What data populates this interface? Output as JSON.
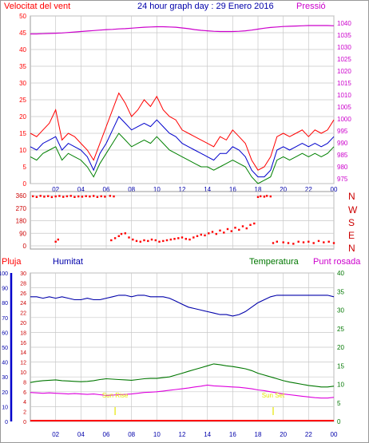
{
  "header": {
    "title": "24 hour graph day : 29 Enero 2016",
    "wind_label": "Velocitat del vent",
    "pressure_label": "Pressió"
  },
  "panel3_labels": {
    "rain": "Pluja",
    "humidity": "Humitat",
    "temperature": "Temperatura",
    "dewpoint": "Punt rosada",
    "sunrise": "Sun Rise",
    "sunset": "Sun Set"
  },
  "direction_labels": [
    "N",
    "W",
    "S",
    "E",
    "N"
  ],
  "colors": {
    "wind_gust": "#ff0000",
    "wind_avg": "#0000cc",
    "wind_speed": "#008000",
    "pressure": "#cc00cc",
    "direction": "#ff0000",
    "humidity": "#0000aa",
    "temperature": "#007700",
    "dewpoint": "#dd00dd",
    "rain": "#ff0000",
    "sun": "#e6e600",
    "grid": "#c8c8c8",
    "title": "#0000aa"
  },
  "chart_data": [
    {
      "type": "line",
      "name": "wind-pressure",
      "x_hours": [
        0,
        0.5,
        1,
        1.5,
        2,
        2.5,
        3,
        3.5,
        4,
        4.5,
        5,
        5.5,
        6,
        6.5,
        7,
        7.5,
        8,
        8.5,
        9,
        9.5,
        10,
        10.5,
        11,
        11.5,
        12,
        12.5,
        13,
        13.5,
        14,
        14.5,
        15,
        15.5,
        16,
        16.5,
        17,
        17.5,
        18,
        18.5,
        19,
        19.5,
        20,
        20.5,
        21,
        21.5,
        22,
        22.5,
        23,
        23.5,
        24
      ],
      "x_tick_labels": [
        "02",
        "04",
        "06",
        "08",
        "10",
        "12",
        "14",
        "16",
        "18",
        "20",
        "22",
        "00"
      ],
      "y_left_ticks": [
        0,
        5,
        10,
        15,
        20,
        25,
        30,
        35,
        40,
        45,
        50
      ],
      "y_right_ticks": [
        975,
        980,
        985,
        990,
        995,
        1000,
        1005,
        1010,
        1015,
        1020,
        1025,
        1030,
        1035,
        1040
      ],
      "ylim_left": [
        0,
        50
      ],
      "ylim_right": [
        973,
        1043
      ],
      "series": [
        {
          "values": [
            15,
            14,
            16,
            18,
            22,
            13,
            15,
            14,
            12,
            10,
            7,
            12,
            17,
            22,
            27,
            24,
            20,
            22,
            25,
            23,
            26,
            22,
            20,
            19,
            16,
            15,
            14,
            13,
            12,
            11,
            14,
            13,
            16,
            14,
            12,
            7,
            4,
            5,
            8,
            14,
            15,
            14,
            15,
            16,
            14,
            16,
            15,
            16,
            19
          ],
          "axis": "left"
        },
        {
          "values": [
            11,
            10,
            12,
            13,
            14,
            10,
            12,
            11,
            10,
            8,
            4,
            9,
            12,
            16,
            20,
            18,
            16,
            17,
            18,
            17,
            19,
            17,
            15,
            14,
            12,
            11,
            10,
            9,
            8,
            7,
            9,
            9,
            11,
            10,
            8,
            4,
            2,
            2,
            4,
            10,
            11,
            10,
            11,
            12,
            11,
            12,
            11,
            12,
            14
          ],
          "axis": "left"
        },
        {
          "values": [
            8,
            7,
            9,
            10,
            11,
            7,
            9,
            8,
            7,
            5,
            2,
            6,
            9,
            12,
            15,
            13,
            11,
            12,
            13,
            12,
            14,
            12,
            10,
            9,
            8,
            7,
            6,
            5,
            5,
            4,
            5,
            6,
            7,
            6,
            5,
            2,
            0,
            1,
            2,
            7,
            8,
            7,
            8,
            9,
            8,
            9,
            8,
            9,
            11
          ],
          "axis": "left"
        },
        {
          "values": [
            1035.5,
            1035.5,
            1035.6,
            1035.7,
            1035.8,
            1035.9,
            1036.1,
            1036.3,
            1036.5,
            1036.7,
            1036.9,
            1037.1,
            1037.3,
            1037.4,
            1037.6,
            1037.7,
            1037.9,
            1038.1,
            1038.3,
            1038.4,
            1038.5,
            1038.5,
            1038.4,
            1038.3,
            1038.0,
            1037.7,
            1037.3,
            1037.0,
            1036.8,
            1036.6,
            1036.5,
            1036.5,
            1036.5,
            1036.6,
            1036.8,
            1037.1,
            1037.5,
            1037.9,
            1038.2,
            1038.4,
            1038.6,
            1038.7,
            1038.8,
            1038.9,
            1039.0,
            1039.0,
            1039.0,
            1039.0,
            1038.9
          ],
          "axis": "right"
        }
      ]
    },
    {
      "type": "scatter",
      "name": "wind-direction",
      "y_ticks": [
        0,
        90,
        180,
        270,
        360
      ],
      "ylim": [
        0,
        360
      ],
      "points": [
        [
          0.2,
          355
        ],
        [
          0.5,
          350
        ],
        [
          0.8,
          358
        ],
        [
          1.1,
          352
        ],
        [
          1.4,
          356
        ],
        [
          1.7,
          349
        ],
        [
          2.0,
          354
        ],
        [
          2.3,
          357
        ],
        [
          2.6,
          351
        ],
        [
          2.9,
          355
        ],
        [
          3.2,
          358
        ],
        [
          3.5,
          350
        ],
        [
          3.8,
          354
        ],
        [
          4.1,
          352
        ],
        [
          4.4,
          356
        ],
        [
          4.7,
          353
        ],
        [
          5.0,
          357
        ],
        [
          5.3,
          350
        ],
        [
          5.6,
          355
        ],
        [
          5.9,
          352
        ],
        [
          6.3,
          358
        ],
        [
          6.6,
          354
        ],
        [
          2.0,
          30
        ],
        [
          2.2,
          45
        ],
        [
          6.4,
          40
        ],
        [
          6.7,
          55
        ],
        [
          7.0,
          70
        ],
        [
          7.2,
          85
        ],
        [
          7.5,
          90
        ],
        [
          7.8,
          60
        ],
        [
          8.1,
          45
        ],
        [
          8.4,
          35
        ],
        [
          8.7,
          30
        ],
        [
          9.0,
          40
        ],
        [
          9.3,
          35
        ],
        [
          9.6,
          45
        ],
        [
          9.9,
          40
        ],
        [
          10.2,
          30
        ],
        [
          10.5,
          35
        ],
        [
          10.8,
          40
        ],
        [
          11.1,
          45
        ],
        [
          11.4,
          50
        ],
        [
          11.7,
          55
        ],
        [
          12.0,
          60
        ],
        [
          12.3,
          50
        ],
        [
          12.6,
          45
        ],
        [
          12.9,
          60
        ],
        [
          13.2,
          70
        ],
        [
          13.5,
          80
        ],
        [
          13.8,
          75
        ],
        [
          14.1,
          90
        ],
        [
          14.4,
          100
        ],
        [
          14.7,
          85
        ],
        [
          15.0,
          110
        ],
        [
          15.3,
          95
        ],
        [
          15.6,
          120
        ],
        [
          15.9,
          105
        ],
        [
          16.2,
          130
        ],
        [
          16.5,
          115
        ],
        [
          16.8,
          140
        ],
        [
          17.1,
          125
        ],
        [
          17.4,
          150
        ],
        [
          17.7,
          160
        ],
        [
          18.0,
          350
        ],
        [
          18.2,
          355
        ],
        [
          18.5,
          352
        ],
        [
          18.7,
          358
        ],
        [
          19.0,
          354
        ],
        [
          19.2,
          20
        ],
        [
          19.5,
          30
        ],
        [
          20.0,
          25
        ],
        [
          20.4,
          20
        ],
        [
          20.8,
          15
        ],
        [
          21.2,
          30
        ],
        [
          21.6,
          25
        ],
        [
          22.0,
          30
        ],
        [
          22.4,
          20
        ],
        [
          22.8,
          35
        ],
        [
          23.2,
          25
        ],
        [
          23.6,
          30
        ],
        [
          24.0,
          20
        ]
      ]
    },
    {
      "type": "line",
      "name": "humidity-temperature",
      "x_hours": [
        0,
        0.5,
        1,
        1.5,
        2,
        2.5,
        3,
        3.5,
        4,
        4.5,
        5,
        5.5,
        6,
        6.5,
        7,
        7.5,
        8,
        8.5,
        9,
        9.5,
        10,
        10.5,
        11,
        11.5,
        12,
        12.5,
        13,
        13.5,
        14,
        14.5,
        15,
        15.5,
        16,
        16.5,
        17,
        17.5,
        18,
        18.5,
        19,
        19.5,
        20,
        20.5,
        21,
        21.5,
        22,
        22.5,
        23,
        23.5,
        24
      ],
      "humidity_ticks": [
        0,
        10,
        20,
        30,
        40,
        50,
        60,
        70,
        80,
        90,
        100
      ],
      "left_temp_ticks": [
        0,
        2,
        4,
        6,
        8,
        10,
        12,
        14,
        16,
        18,
        20,
        22,
        24,
        26,
        28,
        30
      ],
      "right_temp_ticks": [
        0,
        5,
        10,
        15,
        20,
        25,
        30,
        35,
        40
      ],
      "humidity_ylim": [
        0,
        100
      ],
      "temp_ylim": [
        0,
        40
      ],
      "series": [
        {
          "values": [
            84,
            84,
            83,
            84,
            83,
            84,
            83,
            82,
            82,
            83,
            82,
            82,
            83,
            84,
            85,
            85,
            84,
            85,
            85,
            84,
            84,
            84,
            83,
            81,
            79,
            77,
            76,
            75,
            74,
            73,
            72,
            72,
            71,
            72,
            74,
            77,
            80,
            82,
            84,
            85,
            85,
            85,
            85,
            85,
            85,
            85,
            85,
            85,
            84
          ],
          "axis": "humidity"
        },
        {
          "values": [
            10.5,
            10.8,
            11.0,
            11.1,
            11.2,
            11.0,
            10.9,
            10.8,
            10.7,
            10.8,
            11.0,
            11.3,
            11.5,
            11.4,
            11.3,
            11.2,
            11.1,
            11.3,
            11.5,
            11.6,
            11.6,
            11.8,
            12.0,
            12.5,
            13.0,
            13.5,
            14.0,
            14.5,
            15.0,
            15.5,
            15.3,
            15.0,
            14.8,
            14.5,
            14.2,
            13.7,
            13.0,
            12.5,
            12.0,
            11.5,
            11.0,
            10.6,
            10.3,
            10.0,
            9.7,
            9.5,
            9.3,
            9.3,
            9.5
          ],
          "axis": "temperature"
        },
        {
          "values": [
            7.8,
            7.7,
            7.6,
            7.7,
            7.6,
            7.5,
            7.4,
            7.5,
            7.4,
            7.3,
            7.4,
            7.2,
            7.0,
            7.1,
            7.2,
            7.3,
            7.4,
            7.6,
            7.8,
            7.9,
            8.0,
            8.2,
            8.4,
            8.6,
            8.8,
            9.0,
            9.3,
            9.5,
            9.8,
            9.6,
            9.5,
            9.4,
            9.3,
            9.2,
            9.0,
            8.8,
            8.5,
            8.3,
            8.0,
            7.7,
            7.4,
            7.2,
            7.0,
            6.8,
            6.6,
            6.4,
            6.3,
            6.3,
            6.5
          ],
          "axis": "temperature"
        },
        {
          "values": [
            0,
            0,
            0,
            0,
            0,
            0,
            0,
            0,
            0,
            0,
            0,
            0,
            0,
            0,
            0,
            0,
            0,
            0,
            0,
            0,
            0,
            0,
            0,
            0,
            0,
            0,
            0,
            0,
            0,
            0,
            0,
            0,
            0,
            0,
            0,
            0,
            0,
            0,
            0,
            0,
            0,
            0,
            0,
            0,
            0,
            0,
            0,
            0,
            0
          ],
          "axis": "rain"
        }
      ],
      "sunrise_hour": 6.7,
      "sunset_hour": 19.2
    }
  ]
}
